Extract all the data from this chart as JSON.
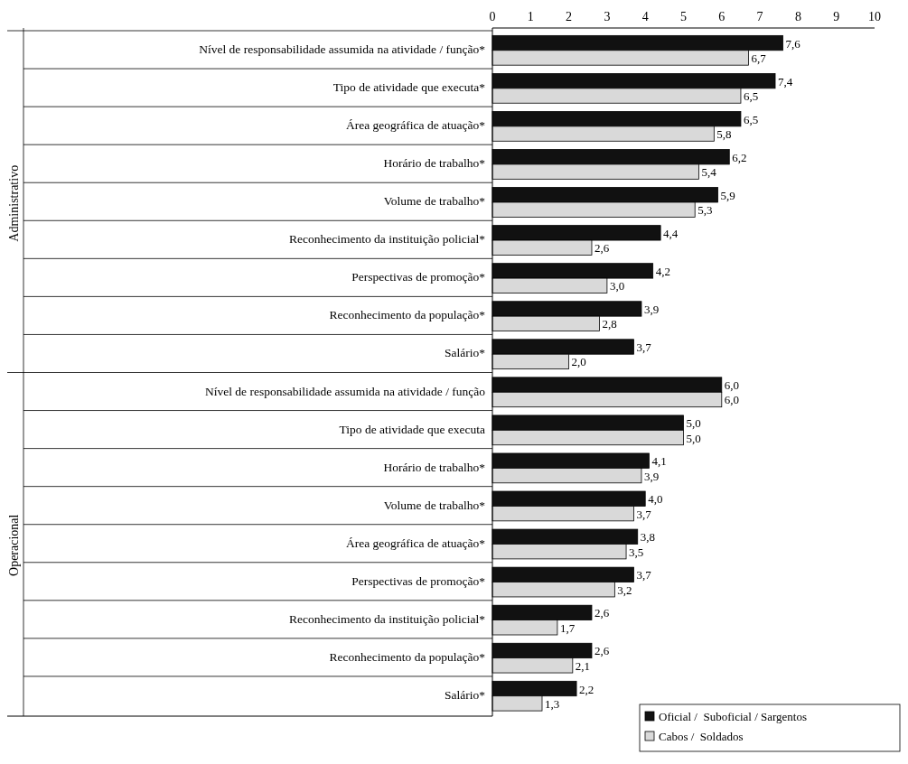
{
  "chart_data": {
    "type": "bar",
    "orientation": "horizontal",
    "categories": [
      "Nível de responsabilidade assumida na atividade / função*",
      "Tipo de atividade que executa*",
      "Área geográfica de atuação*",
      "Horário de trabalho*",
      "Volume de trabalho*",
      "Reconhecimento da instituição policial*",
      "Perspectivas de  promoção*",
      "Reconhecimento da população*",
      "Salário*",
      "Nível de responsabilidade assumida na atividade / função",
      "Tipo de atividade que executa",
      "Horário de trabalho*",
      "Volume de trabalho*",
      "Área geográfica de atuação*",
      "Perspectivas de promoção*",
      "Reconhecimento da instituição policial*",
      "Reconhecimento da população*",
      "Salário*"
    ],
    "series": [
      {
        "name": "Oficial /  Suboficial / Sargentos",
        "color": "#111111",
        "values": [
          7.6,
          7.4,
          6.5,
          6.2,
          5.9,
          4.4,
          4.2,
          3.9,
          3.7,
          6.0,
          5.0,
          4.1,
          4.0,
          3.8,
          3.7,
          2.6,
          2.6,
          2.2
        ],
        "value_labels": [
          "7,6",
          "7,4",
          "6,5",
          "6,2",
          "5,9",
          "4,4",
          "4,2",
          "3,9",
          "3,7",
          "6,0",
          "5,0",
          "4,1",
          "4,0",
          "3,8",
          "3,7",
          "2,6",
          "2,6",
          "2,2"
        ]
      },
      {
        "name": "Cabos /  Soldados",
        "color": "#d9d9d9",
        "values": [
          6.7,
          6.5,
          5.8,
          5.4,
          5.3,
          2.6,
          3.0,
          2.8,
          2.0,
          6.0,
          5.0,
          3.9,
          3.7,
          3.5,
          3.2,
          1.7,
          2.1,
          1.3
        ],
        "value_labels": [
          "6,7",
          "6,5",
          "5,8",
          "5,4",
          "5,3",
          "2,6",
          "3,0",
          "2,8",
          "2,0",
          "6,0",
          "5,0",
          "3,9",
          "3,7",
          "3,5",
          "3,2",
          "1,7",
          "2,1",
          "1,3"
        ]
      }
    ],
    "xlim": [
      0,
      10
    ],
    "xticks": [
      0,
      1,
      2,
      3,
      4,
      5,
      6,
      7,
      8,
      9,
      10
    ],
    "annotations": [
      "Administrativo",
      "Operacional"
    ],
    "legend": "bottom right",
    "grid": false
  }
}
